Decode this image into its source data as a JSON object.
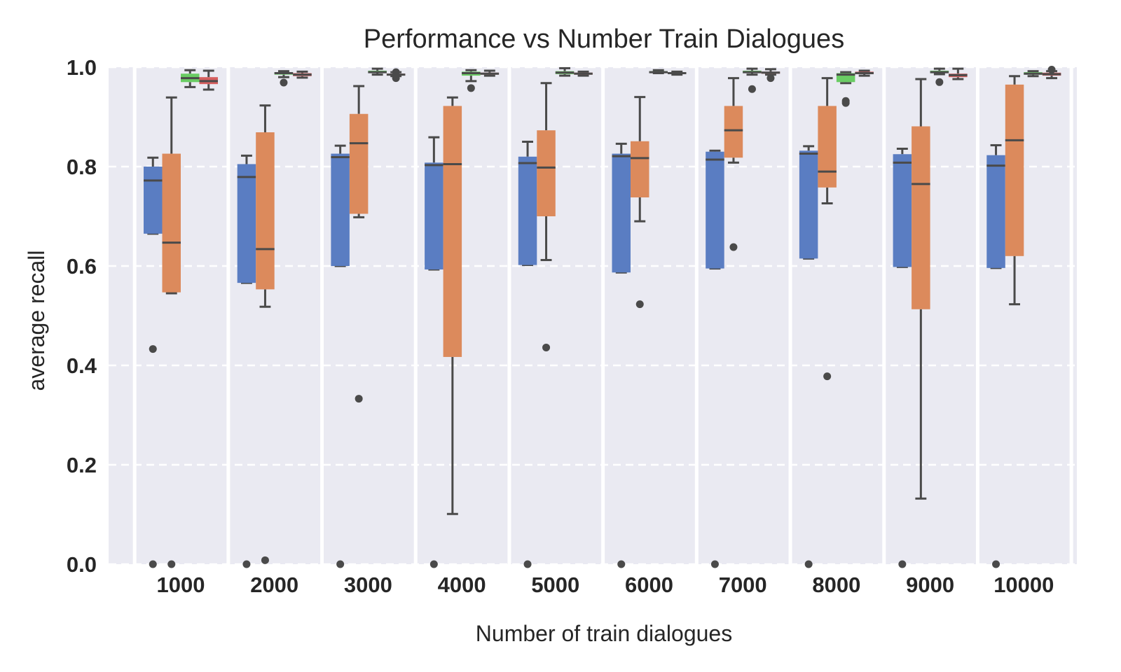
{
  "chart_data": {
    "type": "box",
    "title": "Performance vs Number Train Dialogues",
    "xlabel": "Number of train dialogues",
    "ylabel": "average recall",
    "ylim": [
      0.0,
      1.0
    ],
    "yticks": [
      "0.0",
      "0.2",
      "0.4",
      "0.6",
      "0.8",
      "1.0"
    ],
    "categories": [
      "1000",
      "2000",
      "3000",
      "4000",
      "5000",
      "6000",
      "7000",
      "8000",
      "9000",
      "10000"
    ],
    "grid": "horizontal dashed",
    "series": [
      {
        "color": "#5a7dc2",
        "boxes": [
          {
            "min": 0.665,
            "q1": 0.665,
            "median": 0.772,
            "q3": 0.8,
            "max": 0.818,
            "outliers": [
              0.433,
              0.0
            ]
          },
          {
            "min": 0.566,
            "q1": 0.566,
            "median": 0.779,
            "q3": 0.805,
            "max": 0.822,
            "outliers": [
              0.0
            ]
          },
          {
            "min": 0.6,
            "q1": 0.6,
            "median": 0.819,
            "q3": 0.826,
            "max": 0.842,
            "outliers": [
              0.0
            ]
          },
          {
            "min": 0.593,
            "q1": 0.593,
            "median": 0.803,
            "q3": 0.808,
            "max": 0.859,
            "outliers": [
              0.0
            ]
          },
          {
            "min": 0.602,
            "q1": 0.602,
            "median": 0.807,
            "q3": 0.82,
            "max": 0.85,
            "outliers": [
              0.0
            ]
          },
          {
            "min": 0.587,
            "q1": 0.587,
            "median": 0.821,
            "q3": 0.826,
            "max": 0.846,
            "outliers": [
              0.0
            ]
          },
          {
            "min": 0.595,
            "q1": 0.595,
            "median": 0.814,
            "q3": 0.83,
            "max": 0.832,
            "outliers": [
              0.0
            ]
          },
          {
            "min": 0.615,
            "q1": 0.615,
            "median": 0.826,
            "q3": 0.832,
            "max": 0.841,
            "outliers": [
              0.0
            ]
          },
          {
            "min": 0.598,
            "q1": 0.598,
            "median": 0.808,
            "q3": 0.825,
            "max": 0.836,
            "outliers": [
              0.0
            ]
          },
          {
            "min": 0.596,
            "q1": 0.596,
            "median": 0.802,
            "q3": 0.823,
            "max": 0.843,
            "outliers": [
              0.0
            ]
          }
        ]
      },
      {
        "color": "#dc8a5c",
        "boxes": [
          {
            "min": 0.545,
            "q1": 0.547,
            "median": 0.647,
            "q3": 0.826,
            "max": 0.939,
            "outliers": [
              0.0
            ]
          },
          {
            "min": 0.518,
            "q1": 0.553,
            "median": 0.634,
            "q3": 0.869,
            "max": 0.923,
            "outliers": [
              0.008
            ]
          },
          {
            "min": 0.698,
            "q1": 0.705,
            "median": 0.847,
            "q3": 0.906,
            "max": 0.962,
            "outliers": [
              0.333
            ]
          },
          {
            "min": 0.101,
            "q1": 0.417,
            "median": 0.805,
            "q3": 0.922,
            "max": 0.939,
            "outliers": []
          },
          {
            "min": 0.612,
            "q1": 0.7,
            "median": 0.798,
            "q3": 0.873,
            "max": 0.968,
            "outliers": [
              0.436
            ]
          },
          {
            "min": 0.69,
            "q1": 0.738,
            "median": 0.817,
            "q3": 0.851,
            "max": 0.94,
            "outliers": [
              0.523
            ]
          },
          {
            "min": 0.808,
            "q1": 0.818,
            "median": 0.873,
            "q3": 0.922,
            "max": 0.978,
            "outliers": [
              0.638
            ]
          },
          {
            "min": 0.726,
            "q1": 0.758,
            "median": 0.79,
            "q3": 0.922,
            "max": 0.978,
            "outliers": [
              0.378
            ]
          },
          {
            "min": 0.132,
            "q1": 0.513,
            "median": 0.765,
            "q3": 0.881,
            "max": 0.976,
            "outliers": []
          },
          {
            "min": 0.523,
            "q1": 0.62,
            "median": 0.853,
            "q3": 0.965,
            "max": 0.982,
            "outliers": []
          }
        ]
      },
      {
        "color": "#6acc64",
        "boxes": [
          {
            "min": 0.96,
            "q1": 0.97,
            "median": 0.978,
            "q3": 0.987,
            "max": 0.994,
            "outliers": []
          },
          {
            "min": 0.98,
            "q1": 0.985,
            "median": 0.988,
            "q3": 0.99,
            "max": 0.992,
            "outliers": [
              0.969
            ]
          },
          {
            "min": 0.985,
            "q1": 0.988,
            "median": 0.99,
            "q3": 0.993,
            "max": 0.997,
            "outliers": []
          },
          {
            "min": 0.972,
            "q1": 0.983,
            "median": 0.988,
            "q3": 0.991,
            "max": 0.994,
            "outliers": [
              0.958
            ]
          },
          {
            "min": 0.983,
            "q1": 0.986,
            "median": 0.989,
            "q3": 0.992,
            "max": 0.998,
            "outliers": []
          },
          {
            "min": 0.988,
            "q1": 0.989,
            "median": 0.99,
            "q3": 0.992,
            "max": 0.994,
            "outliers": []
          },
          {
            "min": 0.985,
            "q1": 0.988,
            "median": 0.99,
            "q3": 0.993,
            "max": 0.997,
            "outliers": [
              0.956
            ]
          },
          {
            "min": 0.968,
            "q1": 0.97,
            "median": 0.985,
            "q3": 0.988,
            "max": 0.99,
            "outliers": [
              0.932,
              0.928
            ]
          },
          {
            "min": 0.986,
            "q1": 0.988,
            "median": 0.99,
            "q3": 0.993,
            "max": 0.997,
            "outliers": [
              0.97
            ]
          },
          {
            "min": 0.982,
            "q1": 0.985,
            "median": 0.987,
            "q3": 0.99,
            "max": 0.992,
            "outliers": []
          }
        ]
      },
      {
        "color": "#d65f5f",
        "boxes": [
          {
            "min": 0.955,
            "q1": 0.966,
            "median": 0.972,
            "q3": 0.98,
            "max": 0.993,
            "outliers": []
          },
          {
            "min": 0.979,
            "q1": 0.982,
            "median": 0.985,
            "q3": 0.988,
            "max": 0.991,
            "outliers": []
          },
          {
            "min": 0.982,
            "q1": 0.984,
            "median": 0.985,
            "q3": 0.987,
            "max": 0.99,
            "outliers": [
              0.978,
              0.99
            ]
          },
          {
            "min": 0.983,
            "q1": 0.985,
            "median": 0.987,
            "q3": 0.989,
            "max": 0.993,
            "outliers": []
          },
          {
            "min": 0.983,
            "q1": 0.985,
            "median": 0.987,
            "q3": 0.989,
            "max": 0.991,
            "outliers": []
          },
          {
            "min": 0.985,
            "q1": 0.986,
            "median": 0.988,
            "q3": 0.99,
            "max": 0.991,
            "outliers": []
          },
          {
            "min": 0.985,
            "q1": 0.987,
            "median": 0.989,
            "q3": 0.991,
            "max": 0.996,
            "outliers": [
              0.978
            ]
          },
          {
            "min": 0.983,
            "q1": 0.986,
            "median": 0.988,
            "q3": 0.991,
            "max": 0.993,
            "outliers": []
          },
          {
            "min": 0.976,
            "q1": 0.98,
            "median": 0.984,
            "q3": 0.987,
            "max": 0.997,
            "outliers": []
          },
          {
            "min": 0.978,
            "q1": 0.983,
            "median": 0.986,
            "q3": 0.989,
            "max": 0.992,
            "outliers": [
              0.995
            ]
          }
        ]
      }
    ]
  }
}
